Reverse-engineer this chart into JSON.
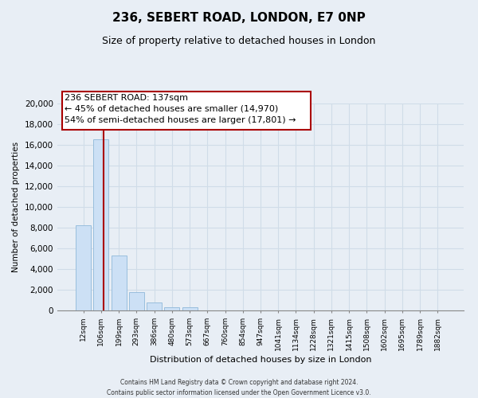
{
  "title": "236, SEBERT ROAD, LONDON, E7 0NP",
  "subtitle": "Size of property relative to detached houses in London",
  "xlabel": "Distribution of detached houses by size in London",
  "ylabel": "Number of detached properties",
  "bar_labels": [
    "12sqm",
    "106sqm",
    "199sqm",
    "293sqm",
    "386sqm",
    "480sqm",
    "573sqm",
    "667sqm",
    "760sqm",
    "854sqm",
    "947sqm",
    "1041sqm",
    "1134sqm",
    "1228sqm",
    "1321sqm",
    "1415sqm",
    "1508sqm",
    "1602sqm",
    "1695sqm",
    "1789sqm",
    "1882sqm"
  ],
  "bar_values": [
    8200,
    16500,
    5300,
    1800,
    750,
    280,
    270,
    0,
    0,
    0,
    0,
    0,
    0,
    0,
    0,
    0,
    0,
    0,
    0,
    0,
    0
  ],
  "bar_color": "#cce0f5",
  "bar_edge_color": "#99bedd",
  "vline_x": 1.15,
  "vline_color": "#aa0000",
  "annotation_title": "236 SEBERT ROAD: 137sqm",
  "annotation_line1": "← 45% of detached houses are smaller (14,970)",
  "annotation_line2": "54% of semi-detached houses are larger (17,801) →",
  "annotation_box_facecolor": "#ffffff",
  "annotation_box_edgecolor": "#aa0000",
  "ylim": [
    0,
    20000
  ],
  "yticks": [
    0,
    2000,
    4000,
    6000,
    8000,
    10000,
    12000,
    14000,
    16000,
    18000,
    20000
  ],
  "grid_color": "#d0dce8",
  "bg_color": "#e8eef5",
  "plot_bg_color": "#e8eef5",
  "footer_line1": "Contains HM Land Registry data © Crown copyright and database right 2024.",
  "footer_line2": "Contains public sector information licensed under the Open Government Licence v3.0."
}
